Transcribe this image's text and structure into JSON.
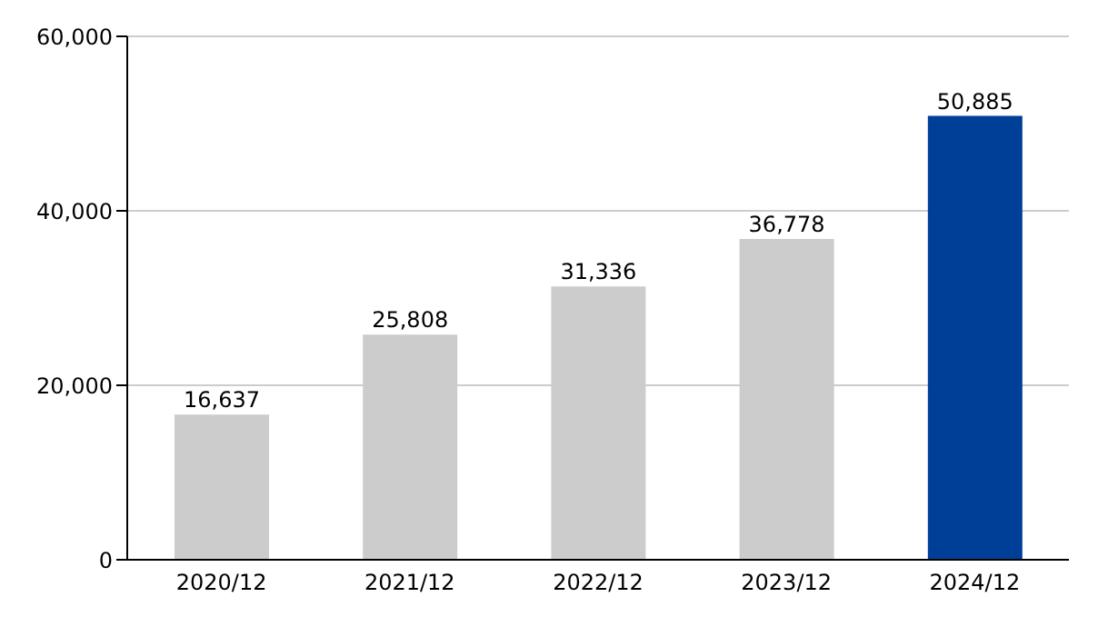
{
  "chart_data": {
    "type": "bar",
    "categories": [
      "2020/12",
      "2021/12",
      "2022/12",
      "2023/12",
      "2024/12"
    ],
    "values": [
      16637,
      25808,
      31336,
      36778,
      50885
    ],
    "colors": [
      "#cccccc",
      "#cccccc",
      "#cccccc",
      "#cccccc",
      "#003f98"
    ],
    "ylim": [
      0,
      60000
    ],
    "yticks": [
      {
        "value": 0,
        "label": "0"
      },
      {
        "value": 20000,
        "label": "20,000"
      },
      {
        "value": 40000,
        "label": "40,000"
      },
      {
        "value": 60000,
        "label": "60,000"
      }
    ],
    "value_labels": [
      "16,637",
      "25,808",
      "31,336",
      "36,778",
      "50,885"
    ],
    "grid": "y"
  }
}
